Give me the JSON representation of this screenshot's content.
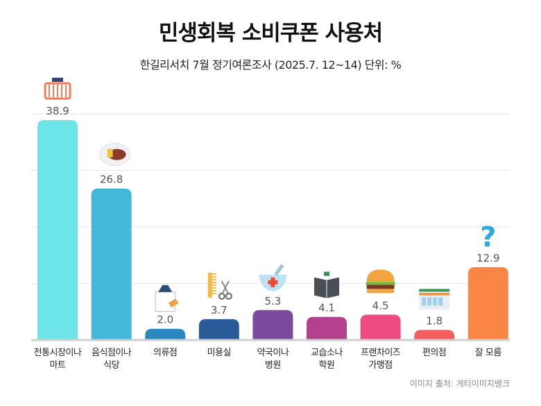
{
  "title": "민생회복 소비쿠폰 사용처",
  "subtitle": "한길리서치 7월 정기여론조사 (2025.7. 12~14) 단위: %",
  "source": "이미지 출처: 게티이미지뱅크",
  "chart_data": {
    "type": "bar",
    "title": "민생회복 소비쿠폰 사용처",
    "subtitle": "한길리서치 7월 정기여론조사 (2025.7. 12~14) 단위: %",
    "categories": [
      "전통시장이나\n마트",
      "음식점이나\n식당",
      "의류점",
      "미용실",
      "약국이나\n병원",
      "교습소나\n학원",
      "프랜차이즈\n가맹점",
      "편의점",
      "잘 모름"
    ],
    "values": [
      38.9,
      26.8,
      2.0,
      3.7,
      5.3,
      4.1,
      4.5,
      1.8,
      12.9
    ],
    "value_labels": [
      "38.9",
      "26.8",
      "2.0",
      "3.7",
      "5.3",
      "4.1",
      "4.5",
      "1.8",
      "12.9"
    ],
    "colors": [
      "#6de5e8",
      "#44b8d8",
      "#2a88bf",
      "#2b5c9a",
      "#7c4b9d",
      "#b4418e",
      "#ec4c82",
      "#f55e5e",
      "#fb8545"
    ],
    "icons": [
      "basket-icon",
      "steak-icon",
      "clothes-bag-icon",
      "comb-scissors-icon",
      "pharmacy-icon",
      "book-icon",
      "burger-icon",
      "convenience-store-icon",
      "question-icon"
    ],
    "ylim": [
      0,
      40
    ],
    "grid": true,
    "xlabel": "",
    "ylabel": ""
  }
}
